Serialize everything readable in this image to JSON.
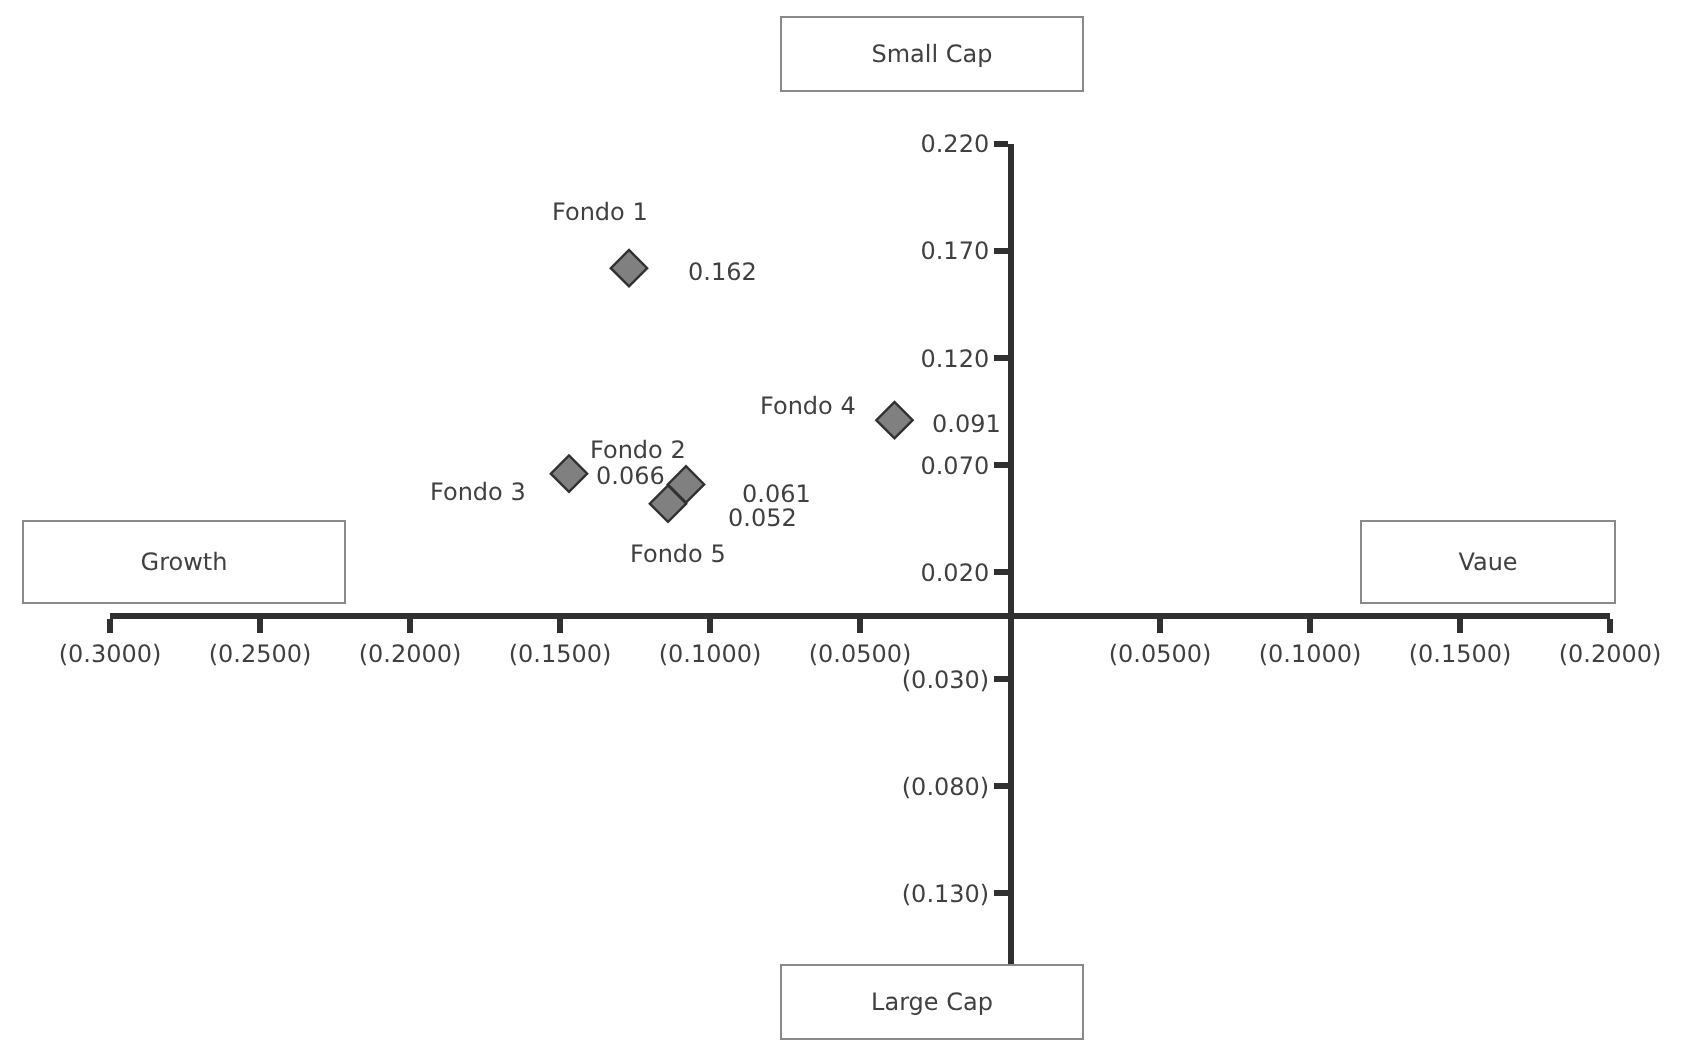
{
  "chart_data": {
    "type": "scatter",
    "x": [
      -0.127,
      -0.108,
      -0.147,
      -0.0385,
      -0.114
    ],
    "values": [
      0.162,
      0.061,
      0.066,
      0.091,
      0.052
    ],
    "color": "#808080",
    "marker": "diamond",
    "data_labels": true,
    "xlim": [
      -0.3,
      0.2
    ],
    "xticks": [
      {
        "value": -0.3,
        "label": "(0.3000)"
      },
      {
        "value": -0.25,
        "label": "(0.2500)"
      },
      {
        "value": -0.2,
        "label": "(0.2000)"
      },
      {
        "value": -0.15,
        "label": "(0.1500)"
      },
      {
        "value": -0.1,
        "label": "(0.1000)"
      },
      {
        "value": -0.05,
        "label": "(0.0500)"
      },
      {
        "value": 0.05,
        "label": "(0.0500)"
      },
      {
        "value": 0.1,
        "label": "(0.1000)"
      },
      {
        "value": 0.15,
        "label": "(0.1500)"
      },
      {
        "value": 0.2,
        "label": "(0.2000)"
      }
    ],
    "ylim": [
      -0.163,
      0.22
    ],
    "yticks": [
      {
        "value": 0.22,
        "label": "0.220"
      },
      {
        "value": 0.17,
        "label": "0.170"
      },
      {
        "value": 0.12,
        "label": "0.120"
      },
      {
        "value": 0.07,
        "label": "0.070"
      },
      {
        "value": 0.02,
        "label": "0.020"
      },
      {
        "value": -0.03,
        "label": "(0.030)"
      },
      {
        "value": -0.08,
        "label": "(0.080)"
      },
      {
        "value": -0.13,
        "label": "(0.130)"
      }
    ],
    "annotations": [
      {
        "text": "Fondo 1",
        "x": -0.127,
        "y": 0.162
      },
      {
        "text": "Fondo 2",
        "x": -0.108,
        "y": 0.061
      },
      {
        "text": "Fondo 3",
        "x": -0.147,
        "y": 0.066
      },
      {
        "text": "Fondo 4",
        "x": -0.0385,
        "y": 0.091
      },
      {
        "text": "Fondo 5",
        "x": -0.114,
        "y": 0.052
      },
      "Small Cap",
      "Large Cap",
      "Growth",
      "Vaue"
    ]
  }
}
